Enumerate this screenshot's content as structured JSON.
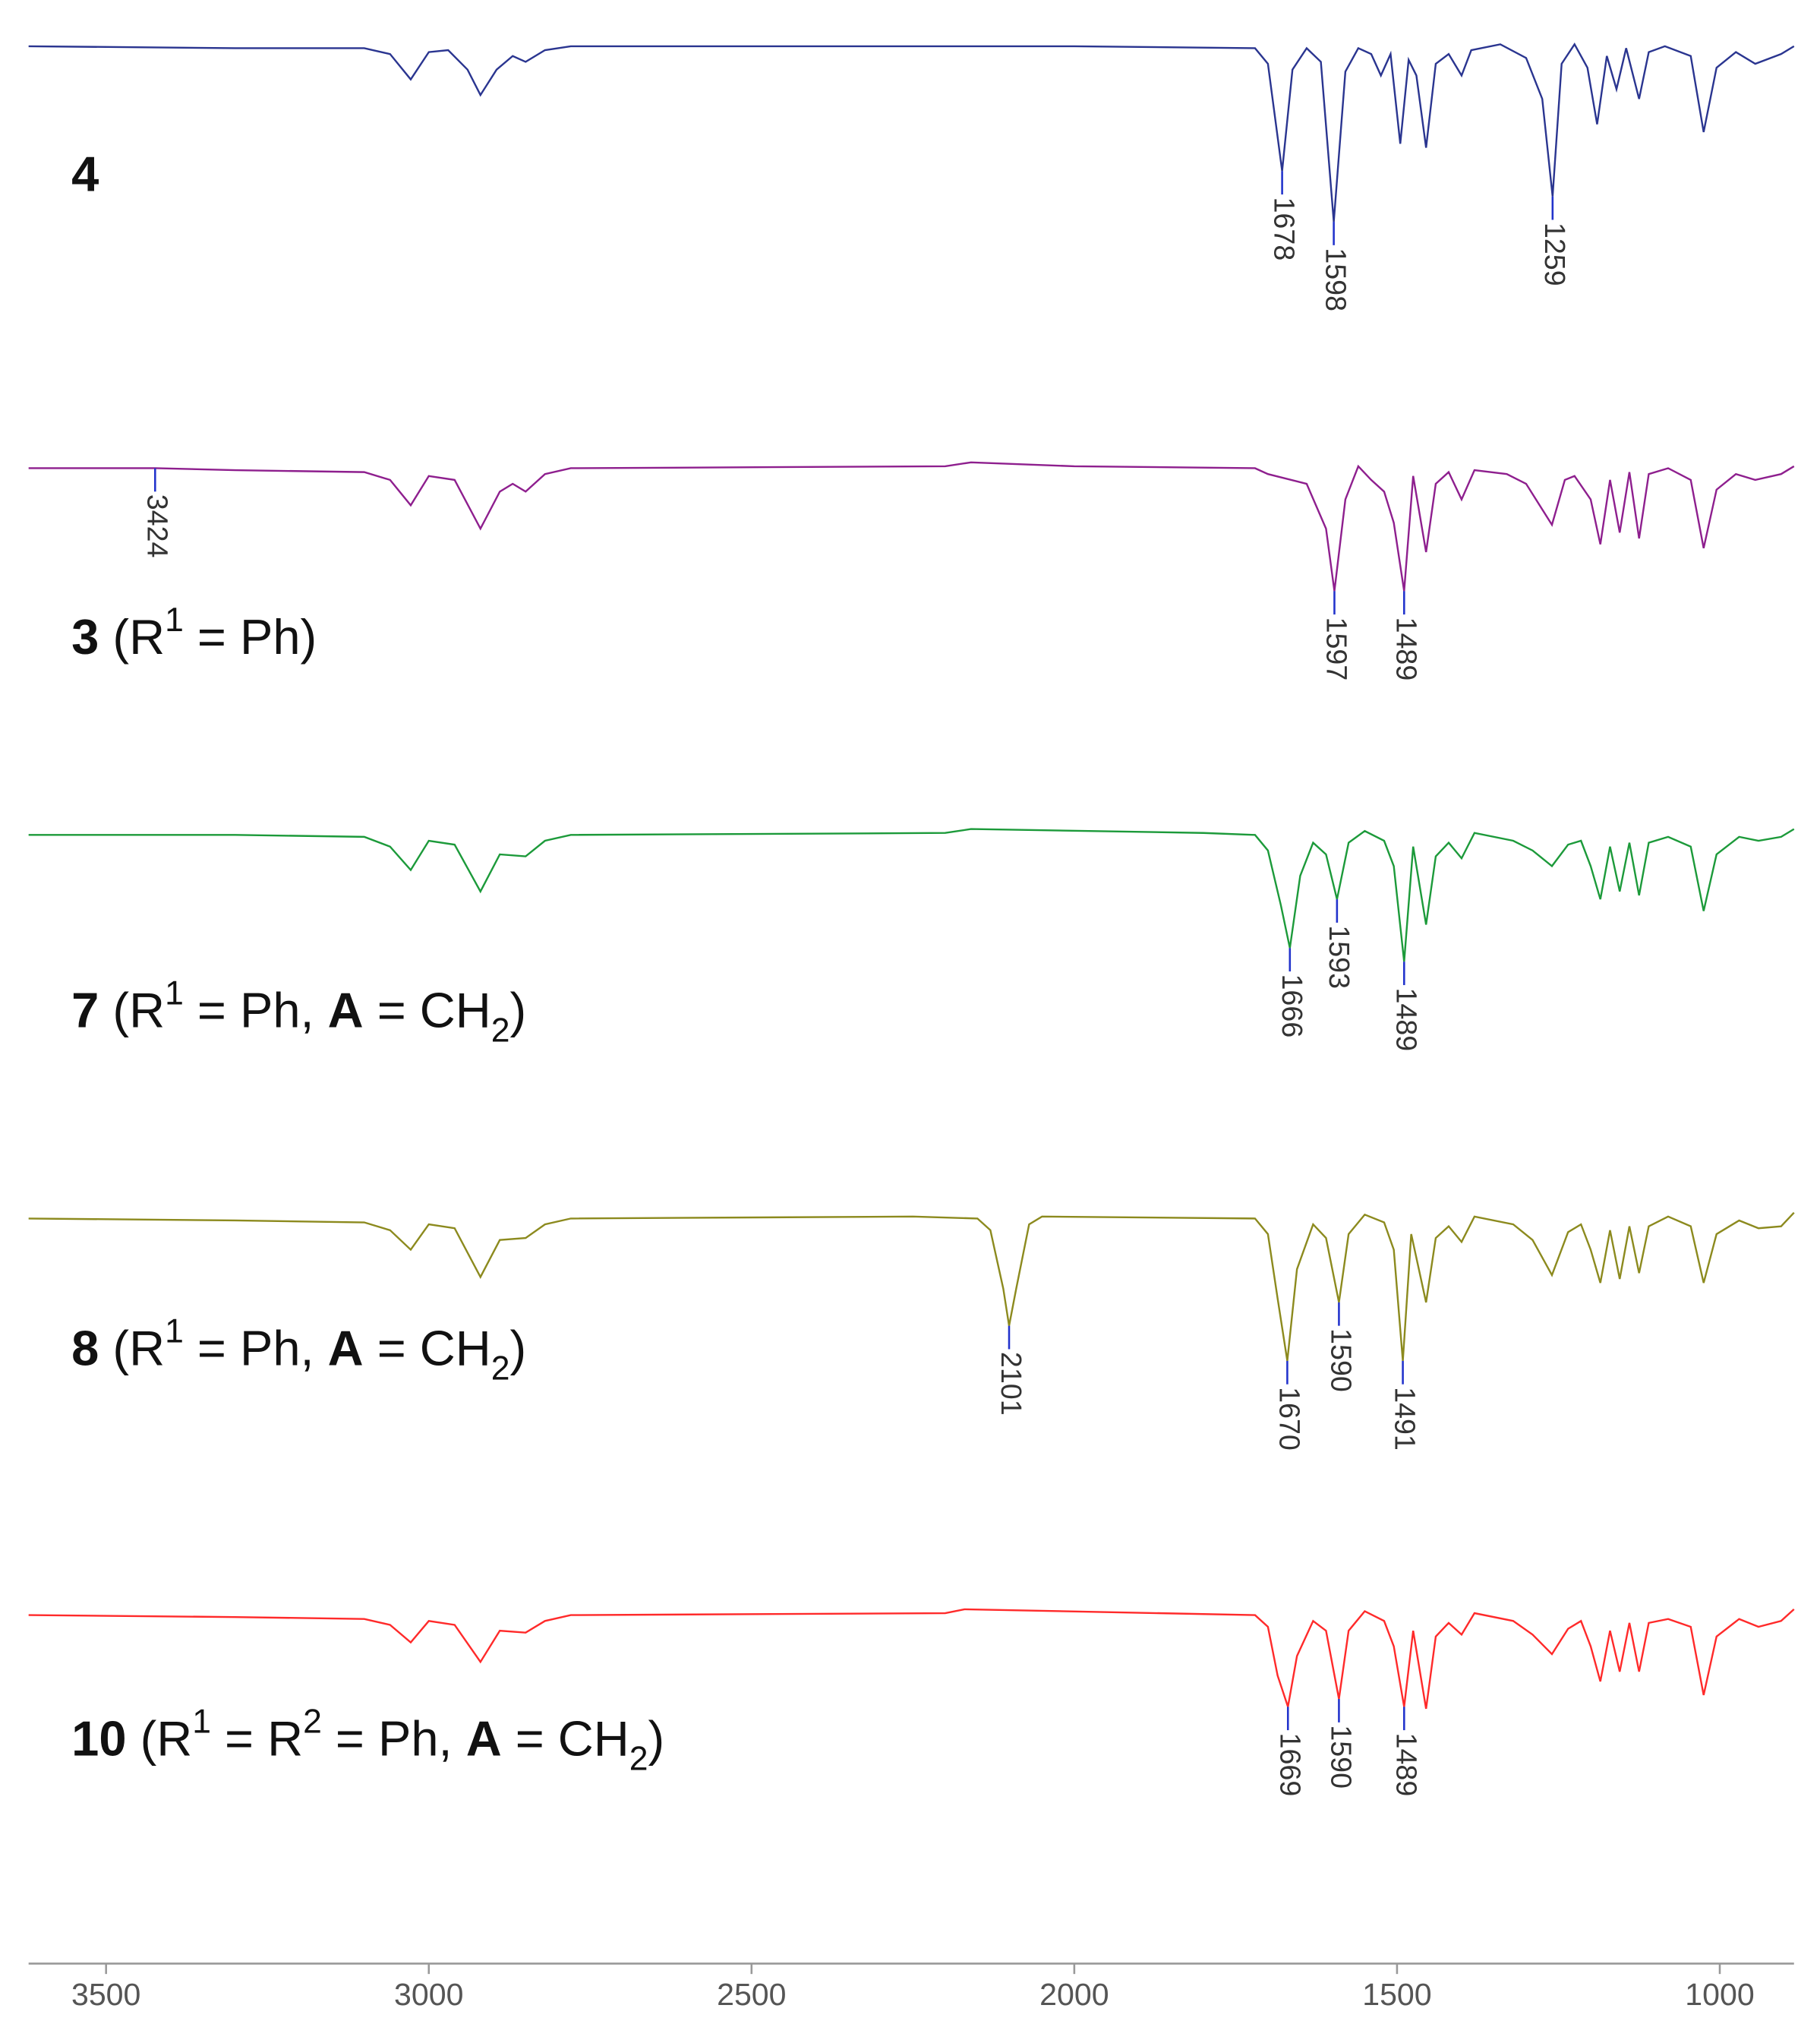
{
  "chart_data": {
    "type": "line",
    "xlim": [
      3620,
      885
    ],
    "xticks": [
      3500,
      3000,
      2500,
      2000,
      1500,
      1000
    ],
    "series": [
      {
        "color": "#2a3590",
        "label": [
          {
            "text": "4",
            "bold": true
          }
        ],
        "peaks": [
          1678,
          1598,
          1259
        ],
        "x": [
          3620,
          3300,
          3100,
          3060,
          3028,
          3000,
          2970,
          2940,
          2920,
          2895,
          2870,
          2850,
          2820,
          2780,
          2000,
          1720,
          1700,
          1678,
          1662,
          1640,
          1618,
          1598,
          1580,
          1560,
          1540,
          1525,
          1510,
          1495,
          1482,
          1470,
          1455,
          1440,
          1420,
          1400,
          1385,
          1340,
          1300,
          1275,
          1259,
          1245,
          1225,
          1205,
          1190,
          1175,
          1160,
          1145,
          1125,
          1110,
          1085,
          1045,
          1025,
          1005,
          975,
          945,
          905,
          885
        ],
        "values": [
          97,
          96,
          96,
          93,
          80,
          94,
          95,
          85,
          72,
          85,
          92,
          89,
          95,
          97,
          97,
          96,
          88,
          33,
          85,
          96,
          89,
          7,
          84,
          96,
          93,
          82,
          93,
          47,
          90,
          82,
          45,
          88,
          93,
          82,
          95,
          98,
          91,
          70,
          20,
          88,
          98,
          86,
          57,
          92,
          75,
          96,
          70,
          94,
          97,
          92,
          53,
          86,
          94,
          88,
          93,
          97
        ]
      },
      {
        "color": "#8e1f8e",
        "label": [
          {
            "text": "3",
            "bold": true
          },
          {
            "text": " (R"
          },
          {
            "text": "1",
            "sup": true
          },
          {
            "text": " = Ph)"
          }
        ],
        "peaks": [
          3424,
          1597,
          1489
        ],
        "x": [
          3620,
          3424,
          3300,
          3100,
          3060,
          3028,
          3000,
          2960,
          2920,
          2890,
          2870,
          2850,
          2820,
          2780,
          2200,
          2160,
          2000,
          1720,
          1700,
          1640,
          1610,
          1597,
          1580,
          1560,
          1540,
          1520,
          1505,
          1489,
          1475,
          1455,
          1440,
          1420,
          1400,
          1380,
          1330,
          1300,
          1260,
          1240,
          1225,
          1200,
          1185,
          1170,
          1155,
          1140,
          1125,
          1110,
          1080,
          1045,
          1025,
          1005,
          975,
          945,
          905,
          885
        ],
        "values": [
          96,
          96,
          95,
          94,
          90,
          77,
          92,
          90,
          65,
          84,
          88,
          84,
          93,
          96,
          97,
          99,
          97,
          96,
          93,
          88,
          65,
          33,
          80,
          97,
          90,
          84,
          68,
          33,
          92,
          53,
          88,
          94,
          80,
          95,
          93,
          88,
          67,
          90,
          92,
          80,
          57,
          90,
          63,
          94,
          60,
          93,
          96,
          90,
          55,
          85,
          93,
          90,
          93,
          97
        ]
      },
      {
        "color": "#1c9a3a",
        "label": [
          {
            "text": "7",
            "bold": true
          },
          {
            "text": " (R"
          },
          {
            "text": "1",
            "sup": true
          },
          {
            "text": " = Ph, "
          },
          {
            "text": "A",
            "bold": true
          },
          {
            "text": " = CH"
          },
          {
            "text": "2",
            "sub": true
          },
          {
            "text": ")"
          }
        ],
        "peaks": [
          1666,
          1593,
          1489
        ],
        "x": [
          3620,
          3300,
          3100,
          3060,
          3028,
          3000,
          2960,
          2920,
          2890,
          2850,
          2820,
          2780,
          2200,
          2160,
          1800,
          1720,
          1700,
          1680,
          1666,
          1650,
          1630,
          1610,
          1593,
          1575,
          1550,
          1520,
          1505,
          1489,
          1475,
          1455,
          1440,
          1420,
          1400,
          1380,
          1320,
          1290,
          1260,
          1235,
          1215,
          1200,
          1185,
          1170,
          1155,
          1140,
          1125,
          1110,
          1080,
          1045,
          1025,
          1005,
          970,
          940,
          905,
          885
        ],
        "values": [
          96,
          96,
          95,
          90,
          78,
          93,
          91,
          67,
          86,
          85,
          93,
          96,
          97,
          99,
          97,
          96,
          88,
          60,
          38,
          75,
          92,
          86,
          63,
          92,
          98,
          93,
          80,
          31,
          90,
          50,
          85,
          92,
          84,
          97,
          93,
          88,
          80,
          91,
          93,
          80,
          63,
          90,
          67,
          92,
          65,
          92,
          95,
          90,
          57,
          86,
          95,
          93,
          95,
          99
        ]
      },
      {
        "color": "#8c8a1e",
        "label": [
          {
            "text": "8",
            "bold": true
          },
          {
            "text": " (R"
          },
          {
            "text": "1",
            "sup": true
          },
          {
            "text": " = Ph, "
          },
          {
            "text": "A",
            "bold": true
          },
          {
            "text": " = CH"
          },
          {
            "text": "2",
            "sub": true
          },
          {
            "text": ")"
          }
        ],
        "peaks": [
          2101,
          1670,
          1590,
          1491
        ],
        "x": [
          3620,
          3300,
          3100,
          3060,
          3028,
          3000,
          2960,
          2920,
          2890,
          2850,
          2820,
          2780,
          2250,
          2150,
          2130,
          2110,
          2101,
          2090,
          2070,
          2050,
          1720,
          1700,
          1685,
          1670,
          1655,
          1630,
          1610,
          1590,
          1575,
          1550,
          1520,
          1505,
          1491,
          1478,
          1455,
          1440,
          1420,
          1400,
          1380,
          1320,
          1290,
          1260,
          1235,
          1215,
          1200,
          1185,
          1170,
          1155,
          1140,
          1125,
          1110,
          1080,
          1045,
          1025,
          1005,
          970,
          940,
          905,
          885
        ],
        "values": [
          96,
          95,
          94,
          90,
          80,
          93,
          91,
          66,
          85,
          86,
          93,
          96,
          97,
          96,
          90,
          60,
          41,
          60,
          93,
          97,
          96,
          88,
          55,
          23,
          70,
          93,
          86,
          53,
          88,
          98,
          94,
          80,
          23,
          88,
          53,
          86,
          92,
          84,
          97,
          93,
          85,
          67,
          89,
          93,
          80,
          63,
          90,
          65,
          92,
          68,
          92,
          97,
          92,
          63,
          88,
          95,
          91,
          92,
          99
        ]
      },
      {
        "color": "#ff2a2a",
        "label": [
          {
            "text": "10",
            "bold": true
          },
          {
            "text": " (R"
          },
          {
            "text": "1",
            "sup": true
          },
          {
            "text": " = R"
          },
          {
            "text": "2",
            "sup": true
          },
          {
            "text": " = Ph, "
          },
          {
            "text": "A",
            "bold": true
          },
          {
            "text": " = CH"
          },
          {
            "text": "2",
            "sub": true
          },
          {
            "text": ")"
          }
        ],
        "peaks": [
          1669,
          1590,
          1489
        ],
        "x": [
          3620,
          3300,
          3100,
          3060,
          3028,
          3000,
          2960,
          2920,
          2890,
          2850,
          2820,
          2780,
          2200,
          2170,
          1720,
          1700,
          1685,
          1669,
          1655,
          1630,
          1610,
          1590,
          1575,
          1550,
          1520,
          1505,
          1489,
          1475,
          1455,
          1440,
          1420,
          1400,
          1380,
          1320,
          1290,
          1260,
          1235,
          1215,
          1200,
          1185,
          1170,
          1155,
          1140,
          1125,
          1110,
          1080,
          1045,
          1025,
          1005,
          970,
          940,
          905,
          885
        ],
        "values": [
          96,
          95,
          94,
          91,
          82,
          93,
          91,
          72,
          88,
          87,
          93,
          96,
          97,
          99,
          96,
          90,
          65,
          49,
          75,
          93,
          88,
          53,
          88,
          98,
          93,
          80,
          49,
          88,
          48,
          85,
          92,
          86,
          97,
          93,
          86,
          76,
          89,
          93,
          80,
          62,
          88,
          67,
          92,
          67,
          92,
          94,
          90,
          55,
          85,
          94,
          90,
          93,
          99
        ]
      }
    ]
  }
}
